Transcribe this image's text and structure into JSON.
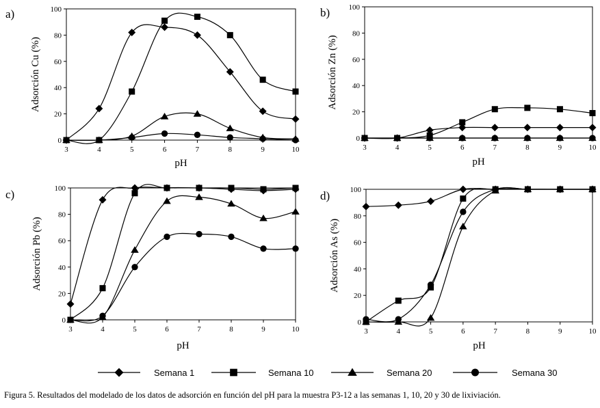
{
  "chart_data": [
    {
      "type": "line",
      "panel_label": "a)",
      "xlabel": "pH",
      "ylabel": "Adsorción Cu (%)",
      "x": [
        3,
        4,
        5,
        6,
        7,
        8,
        9,
        10
      ],
      "xticks": [
        "3",
        "4",
        "5",
        "6",
        "7",
        "8",
        "9",
        "10"
      ],
      "ylim": [
        0,
        100
      ],
      "yticks": [
        "0",
        "20",
        "40",
        "60",
        "80",
        "100"
      ],
      "series": [
        {
          "name": "Semana 1",
          "marker": "diamond",
          "values": [
            0,
            24,
            82,
            86,
            80,
            52,
            22,
            16
          ]
        },
        {
          "name": "Semana 10",
          "marker": "square",
          "values": [
            0,
            0,
            37,
            91,
            94,
            80,
            46,
            37
          ]
        },
        {
          "name": "Semana 20",
          "marker": "triangle",
          "values": [
            0,
            0,
            3,
            18,
            20,
            9,
            2,
            1
          ]
        },
        {
          "name": "Semana 30",
          "marker": "circle",
          "values": [
            0,
            0,
            2,
            5,
            4,
            2,
            1,
            0
          ]
        }
      ]
    },
    {
      "type": "line",
      "panel_label": "b)",
      "xlabel": "pH",
      "ylabel": "Adsorción Zn (%)",
      "x": [
        3,
        4,
        5,
        6,
        7,
        8,
        9,
        10
      ],
      "xticks": [
        "3",
        "4",
        "5",
        "6",
        "7",
        "8",
        "9",
        "10"
      ],
      "ylim": [
        0,
        100
      ],
      "yticks": [
        "0",
        "20",
        "40",
        "60",
        "80",
        "100"
      ],
      "series": [
        {
          "name": "Semana 1",
          "marker": "diamond",
          "values": [
            0,
            0,
            6,
            8,
            8,
            8,
            8,
            8
          ]
        },
        {
          "name": "Semana 10",
          "marker": "square",
          "values": [
            0,
            0,
            2,
            12,
            22,
            23,
            22,
            19
          ]
        },
        {
          "name": "Semana 20",
          "marker": "triangle",
          "values": [
            0,
            0,
            0,
            0,
            0,
            0,
            0,
            0
          ]
        },
        {
          "name": "Semana 30",
          "marker": "circle",
          "values": [
            0,
            0,
            0,
            0,
            0,
            0,
            0,
            0
          ]
        }
      ]
    },
    {
      "type": "line",
      "panel_label": "c)",
      "xlabel": "pH",
      "ylabel": "Adsorción Pb (%)",
      "x": [
        3,
        4,
        5,
        6,
        7,
        8,
        9,
        10
      ],
      "xticks": [
        "3",
        "4",
        "5",
        "6",
        "7",
        "8",
        "9",
        "10"
      ],
      "ylim": [
        0,
        100
      ],
      "yticks": [
        "0",
        "20",
        "40",
        "60",
        "80",
        "100"
      ],
      "series": [
        {
          "name": "Semana 1",
          "marker": "diamond",
          "values": [
            12,
            91,
            100,
            100,
            100,
            99,
            98,
            99
          ]
        },
        {
          "name": "Semana 10",
          "marker": "square",
          "values": [
            0,
            24,
            96,
            100,
            100,
            100,
            99,
            100
          ]
        },
        {
          "name": "Semana 20",
          "marker": "triangle",
          "values": [
            0,
            2,
            53,
            90,
            93,
            88,
            77,
            82
          ]
        },
        {
          "name": "Semana 30",
          "marker": "circle",
          "values": [
            0,
            3,
            40,
            63,
            65,
            63,
            54,
            54
          ]
        }
      ]
    },
    {
      "type": "line",
      "panel_label": "d)",
      "xlabel": "pH",
      "ylabel": "Adsorción As (%)",
      "x": [
        3,
        4,
        5,
        6,
        7,
        8,
        9,
        10
      ],
      "xticks": [
        "3",
        "4",
        "5",
        "6",
        "7",
        "8",
        "9",
        "10"
      ],
      "ylim": [
        0,
        100
      ],
      "yticks": [
        "0",
        "20",
        "40",
        "60",
        "80",
        "100"
      ],
      "series": [
        {
          "name": "Semana 1",
          "marker": "diamond",
          "values": [
            87,
            88,
            91,
            100,
            100,
            100,
            100,
            100
          ]
        },
        {
          "name": "Semana 10",
          "marker": "square",
          "values": [
            0,
            16,
            26,
            93,
            100,
            100,
            100,
            100
          ]
        },
        {
          "name": "Semana 20",
          "marker": "triangle",
          "values": [
            0,
            0,
            3,
            72,
            99,
            100,
            100,
            100
          ]
        },
        {
          "name": "Semana 30",
          "marker": "circle",
          "values": [
            2,
            2,
            28,
            83,
            100,
            100,
            100,
            100
          ]
        }
      ]
    }
  ],
  "legend": [
    {
      "label": "Semana 1",
      "marker": "diamond"
    },
    {
      "label": "Semana 10",
      "marker": "square"
    },
    {
      "label": "Semana 20",
      "marker": "triangle"
    },
    {
      "label": "Semana 30",
      "marker": "circle"
    }
  ],
  "caption": "Figura 5. Resultados del modelado de los datos de adsorción en función del pH para la muestra P3-12 a las semanas 1, 10, 20 y 30 de lixiviación."
}
